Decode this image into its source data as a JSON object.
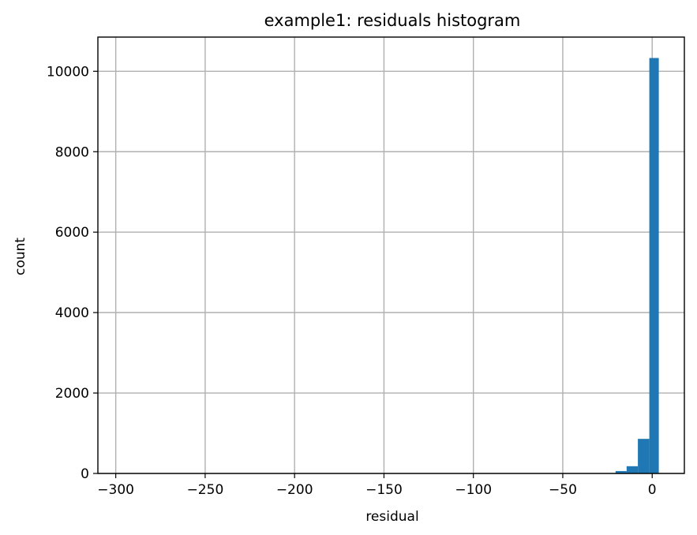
{
  "chart_data": {
    "type": "bar",
    "title": "example1: residuals histogram",
    "xlabel": "residual",
    "ylabel": "count",
    "xlim": [
      -310,
      18.0
    ],
    "ylim": [
      0,
      10850
    ],
    "grid": true,
    "bar_color": "#1f77b4",
    "xticks": [
      -300,
      -250,
      -200,
      -150,
      -100,
      -50,
      0
    ],
    "xtick_labels": [
      "−300",
      "−250",
      "−200",
      "−150",
      "−100",
      "−50",
      "0"
    ],
    "yticks": [
      0,
      2000,
      4000,
      6000,
      8000,
      10000
    ],
    "ytick_labels": [
      "0",
      "2000",
      "4000",
      "6000",
      "8000",
      "10000"
    ],
    "bins": [
      {
        "x0": -20.5,
        "x1": -14.3,
        "count": 60
      },
      {
        "x0": -14.3,
        "x1": -8.0,
        "count": 180
      },
      {
        "x0": -8.0,
        "x1": -1.6,
        "count": 860
      },
      {
        "x0": -1.6,
        "x1": 3.7,
        "count": 10330
      }
    ]
  }
}
